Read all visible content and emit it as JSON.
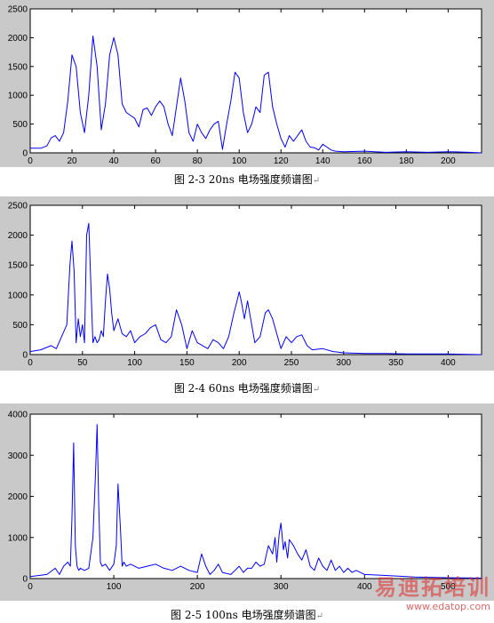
{
  "chart_data": [
    {
      "type": "line",
      "color": "#0000ff",
      "xlim": [
        0,
        216
      ],
      "ylim": [
        0,
        2500
      ],
      "xticks": [
        0,
        20,
        40,
        60,
        80,
        100,
        120,
        140,
        160,
        180,
        200
      ],
      "yticks": [
        0,
        500,
        1000,
        1500,
        2000,
        2500
      ],
      "caption": "图 2-3 20ns 电场强度频谱图",
      "x": [
        0,
        5,
        8,
        10,
        12,
        14,
        16,
        18,
        20,
        22,
        24,
        26,
        28,
        30,
        32,
        34,
        36,
        38,
        40,
        42,
        44,
        46,
        48,
        50,
        52,
        54,
        56,
        58,
        60,
        62,
        64,
        66,
        68,
        70,
        72,
        74,
        76,
        78,
        80,
        82,
        84,
        86,
        88,
        90,
        92,
        94,
        96,
        98,
        100,
        102,
        104,
        106,
        108,
        110,
        112,
        114,
        116,
        118,
        120,
        122,
        124,
        126,
        128,
        130,
        132,
        134,
        136,
        138,
        140,
        142,
        144,
        146,
        150,
        160,
        170,
        180,
        190,
        200,
        210,
        216
      ],
      "y": [
        80,
        80,
        120,
        260,
        300,
        200,
        350,
        900,
        1700,
        1500,
        700,
        350,
        1000,
        2030,
        1500,
        400,
        850,
        1700,
        2000,
        1700,
        850,
        700,
        650,
        600,
        450,
        750,
        780,
        650,
        800,
        900,
        800,
        500,
        300,
        800,
        1300,
        900,
        350,
        200,
        500,
        350,
        250,
        400,
        500,
        550,
        60,
        500,
        900,
        1400,
        1300,
        700,
        350,
        500,
        800,
        700,
        1350,
        1400,
        800,
        500,
        250,
        100,
        300,
        200,
        300,
        400,
        200,
        100,
        90,
        50,
        150,
        100,
        50,
        30,
        20,
        30,
        10,
        20,
        10,
        20,
        10,
        0
      ]
    },
    {
      "type": "line",
      "color": "#0000ff",
      "xlim": [
        0,
        432
      ],
      "ylim": [
        0,
        2500
      ],
      "xticks": [
        0,
        50,
        100,
        150,
        200,
        250,
        300,
        350,
        400
      ],
      "yticks": [
        0,
        500,
        1000,
        1500,
        2000,
        2500
      ],
      "caption": "图 2-4 60ns 电场强度频谱图",
      "x": [
        0,
        10,
        20,
        25,
        30,
        35,
        38,
        40,
        42,
        44,
        46,
        48,
        50,
        52,
        54,
        56,
        58,
        60,
        62,
        64,
        66,
        68,
        70,
        72,
        74,
        76,
        78,
        80,
        84,
        88,
        92,
        96,
        100,
        105,
        110,
        115,
        120,
        125,
        130,
        135,
        140,
        145,
        150,
        155,
        160,
        170,
        175,
        180,
        185,
        190,
        195,
        198,
        200,
        202,
        205,
        208,
        212,
        215,
        220,
        225,
        228,
        232,
        236,
        240,
        245,
        250,
        255,
        260,
        265,
        270,
        280,
        290,
        300,
        320,
        340,
        360,
        380,
        400,
        420,
        432
      ],
      "y": [
        50,
        80,
        150,
        100,
        300,
        500,
        1500,
        1900,
        1400,
        200,
        600,
        300,
        500,
        200,
        2000,
        2200,
        1200,
        200,
        300,
        200,
        250,
        400,
        300,
        900,
        1350,
        1100,
        700,
        400,
        600,
        350,
        300,
        400,
        200,
        300,
        350,
        450,
        500,
        250,
        200,
        300,
        750,
        500,
        100,
        400,
        200,
        100,
        250,
        200,
        100,
        300,
        700,
        900,
        1050,
        900,
        600,
        900,
        500,
        200,
        300,
        700,
        750,
        600,
        350,
        100,
        300,
        200,
        300,
        330,
        150,
        80,
        100,
        50,
        30,
        20,
        20,
        10,
        10,
        10,
        5,
        0
      ]
    },
    {
      "type": "line",
      "color": "#0000ff",
      "xlim": [
        0,
        540
      ],
      "ylim": [
        0,
        4000
      ],
      "xticks": [
        0,
        100,
        200,
        300,
        400,
        500
      ],
      "yticks": [
        0,
        1000,
        2000,
        3000,
        4000
      ],
      "caption": "图 2-5 100ns 电场强度频谱图",
      "x": [
        0,
        20,
        30,
        35,
        40,
        45,
        48,
        50,
        52,
        54,
        56,
        58,
        60,
        65,
        70,
        75,
        78,
        80,
        82,
        84,
        86,
        90,
        95,
        100,
        103,
        105,
        108,
        110,
        112,
        115,
        120,
        130,
        140,
        150,
        160,
        170,
        180,
        190,
        200,
        205,
        210,
        215,
        220,
        225,
        230,
        240,
        245,
        250,
        255,
        260,
        265,
        270,
        275,
        280,
        285,
        290,
        293,
        295,
        298,
        300,
        303,
        305,
        308,
        310,
        315,
        320,
        325,
        330,
        335,
        340,
        345,
        350,
        355,
        360,
        365,
        370,
        375,
        380,
        385,
        390,
        400,
        420,
        440,
        460,
        500,
        540
      ],
      "y": [
        50,
        100,
        250,
        100,
        300,
        400,
        300,
        1500,
        3300,
        800,
        300,
        200,
        250,
        200,
        250,
        1000,
        2500,
        3750,
        1800,
        400,
        300,
        350,
        200,
        350,
        800,
        2300,
        1200,
        300,
        400,
        300,
        350,
        250,
        300,
        350,
        250,
        200,
        300,
        200,
        150,
        600,
        300,
        100,
        200,
        350,
        150,
        100,
        200,
        300,
        150,
        250,
        250,
        400,
        300,
        350,
        800,
        600,
        1000,
        400,
        1100,
        1350,
        700,
        900,
        500,
        950,
        800,
        600,
        450,
        700,
        300,
        200,
        500,
        300,
        200,
        450,
        200,
        300,
        150,
        250,
        150,
        200,
        100,
        80,
        60,
        40,
        20,
        10
      ]
    }
  ],
  "watermark": {
    "text": "易迪拓培训",
    "url": "www.edatop.com"
  }
}
